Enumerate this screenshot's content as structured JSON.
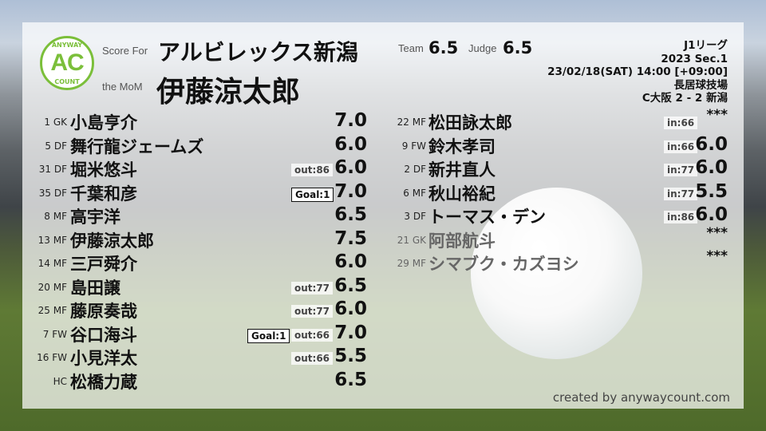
{
  "header": {
    "logo_top": "ANYWAY",
    "logo_main": "AC",
    "logo_bottom": "COUNT",
    "score_for_label": "Score For",
    "club": "アルビレックス新潟",
    "mom_label": "the MoM",
    "mom": "伊藤涼太郎",
    "team_label": "Team",
    "team_score": "6.5",
    "judge_label": "Judge",
    "judge_score": "6.5"
  },
  "match": {
    "league": "J1リーグ",
    "section": "2023 Sec.1",
    "datetime": "23/02/18(SAT) 14:00 [+09:00]",
    "venue": "長居球技場",
    "result": "C大阪 2 - 2 新潟"
  },
  "left_players": [
    {
      "num": "1 GK",
      "name": "小島亨介",
      "score": "7.0",
      "goal": "",
      "sub": ""
    },
    {
      "num": "5 DF",
      "name": "舞行龍ジェームズ",
      "score": "6.0",
      "goal": "",
      "sub": ""
    },
    {
      "num": "31 DF",
      "name": "堀米悠斗",
      "score": "6.0",
      "goal": "",
      "sub": "out:86"
    },
    {
      "num": "35 DF",
      "name": "千葉和彦",
      "score": "7.0",
      "goal": "Goal:1",
      "sub": ""
    },
    {
      "num": "8 MF",
      "name": "高宇洋",
      "score": "6.5",
      "goal": "",
      "sub": ""
    },
    {
      "num": "13 MF",
      "name": "伊藤涼太郎",
      "score": "7.5",
      "goal": "",
      "sub": ""
    },
    {
      "num": "14 MF",
      "name": "三戸舜介",
      "score": "6.0",
      "goal": "",
      "sub": ""
    },
    {
      "num": "20 MF",
      "name": "島田譲",
      "score": "6.5",
      "goal": "",
      "sub": "out:77"
    },
    {
      "num": "25 MF",
      "name": "藤原奏哉",
      "score": "6.0",
      "goal": "",
      "sub": "out:77"
    },
    {
      "num": "7 FW",
      "name": "谷口海斗",
      "score": "7.0",
      "goal": "Goal:1",
      "sub": "out:66"
    },
    {
      "num": "16 FW",
      "name": "小見洋太",
      "score": "5.5",
      "goal": "",
      "sub": "out:66"
    },
    {
      "num": "HC",
      "name": "松橋力蔵",
      "score": "6.5",
      "goal": "",
      "sub": ""
    }
  ],
  "right_players": [
    {
      "num": "22 MF",
      "name": "松田詠太郎",
      "score": "***",
      "sub": "in:66",
      "unused": false
    },
    {
      "num": "9 FW",
      "name": "鈴木孝司",
      "score": "6.0",
      "sub": "in:66",
      "unused": false
    },
    {
      "num": "2 DF",
      "name": "新井直人",
      "score": "6.0",
      "sub": "in:77",
      "unused": false
    },
    {
      "num": "6 MF",
      "name": "秋山裕紀",
      "score": "5.5",
      "sub": "in:77",
      "unused": false
    },
    {
      "num": "3 DF",
      "name": "トーマス・デン",
      "score": "6.0",
      "sub": "in:86",
      "unused": false
    },
    {
      "num": "21 GK",
      "name": "阿部航斗",
      "score": "***",
      "sub": "",
      "unused": true
    },
    {
      "num": "29 MF",
      "name": "シマブク・カズヨシ",
      "score": "***",
      "sub": "",
      "unused": true
    }
  ],
  "footer": {
    "credit": "created by anywaycount.com"
  },
  "colors": {
    "brand_green": "#7bbf3a"
  }
}
